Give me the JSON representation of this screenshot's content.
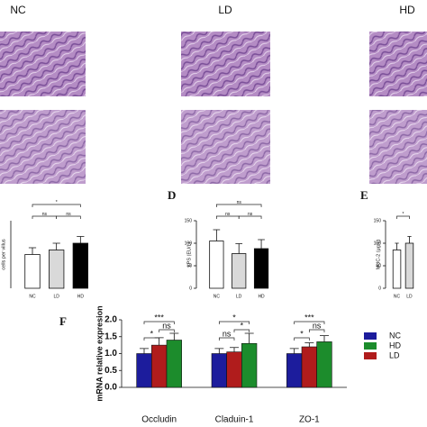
{
  "header": {
    "columns": [
      "NC",
      "LD",
      "HD"
    ]
  },
  "chart_data": [
    {
      "type": "bar",
      "panel": null,
      "y_label": "cells per villus",
      "categories": [
        "NC",
        "LD",
        "HD"
      ],
      "values": [
        7.5,
        8.5,
        10
      ],
      "errors": [
        1.5,
        1.5,
        1.5
      ],
      "colors": [
        "#ffffff",
        "#d9d9d9",
        "#000000"
      ],
      "ylim": [
        0,
        15
      ],
      "annotations": [
        "*",
        "ns",
        "ns"
      ]
    },
    {
      "type": "bar",
      "panel": "D",
      "y_label": "LPS (EU/L)",
      "categories": [
        "NC",
        "LD",
        "HD"
      ],
      "values": [
        105,
        77,
        88
      ],
      "errors": [
        25,
        22,
        20
      ],
      "colors": [
        "#ffffff",
        "#d9d9d9",
        "#000000"
      ],
      "ylim": [
        0,
        150
      ],
      "yticks": [
        0,
        50,
        100,
        150
      ],
      "annotations": [
        "ns",
        "ns",
        "ns"
      ]
    },
    {
      "type": "bar",
      "panel": "E",
      "y_label": "MUC-2 (μg/L)",
      "categories": [
        "NC",
        "LD"
      ],
      "values": [
        85,
        100
      ],
      "errors": [
        15,
        15
      ],
      "colors": [
        "#ffffff",
        "#d9d9d9"
      ],
      "ylim": [
        0,
        150
      ],
      "yticks": [
        0,
        50,
        100,
        150
      ],
      "annotations": [
        "*"
      ]
    },
    {
      "type": "grouped-bar",
      "panel": "F",
      "y_label": "mRNA relative expresion",
      "categories": [
        "Occludin",
        "Claduin-1",
        "ZO-1"
      ],
      "series": [
        {
          "name": "NC",
          "color": "#1c1c9c",
          "values": [
            1.0,
            1.0,
            1.0
          ],
          "errors": [
            0.15,
            0.15,
            0.15
          ]
        },
        {
          "name": "LD",
          "color": "#b01c1c",
          "values": [
            1.25,
            1.05,
            1.2
          ],
          "errors": [
            0.22,
            0.13,
            0.12
          ]
        },
        {
          "name": "HD",
          "color": "#1c8c2c",
          "values": [
            1.4,
            1.3,
            1.35
          ],
          "errors": [
            0.2,
            0.3,
            0.18
          ]
        }
      ],
      "legend_order": [
        0,
        2,
        1
      ],
      "ylim": [
        0,
        2.0
      ],
      "yticks": [
        {
          "value": 0,
          "label": "0.0"
        },
        {
          "value": 0.5,
          "label": "0.5"
        },
        {
          "value": 1.0,
          "label": "1.0"
        },
        {
          "value": 1.5,
          "label": "1.5"
        },
        {
          "value": 2.0,
          "label": "2.0"
        }
      ],
      "annotations": [
        [
          "*",
          "***",
          "ns"
        ],
        [
          "ns",
          "*",
          "*"
        ],
        [
          "*",
          "***",
          "ns"
        ]
      ]
    }
  ]
}
